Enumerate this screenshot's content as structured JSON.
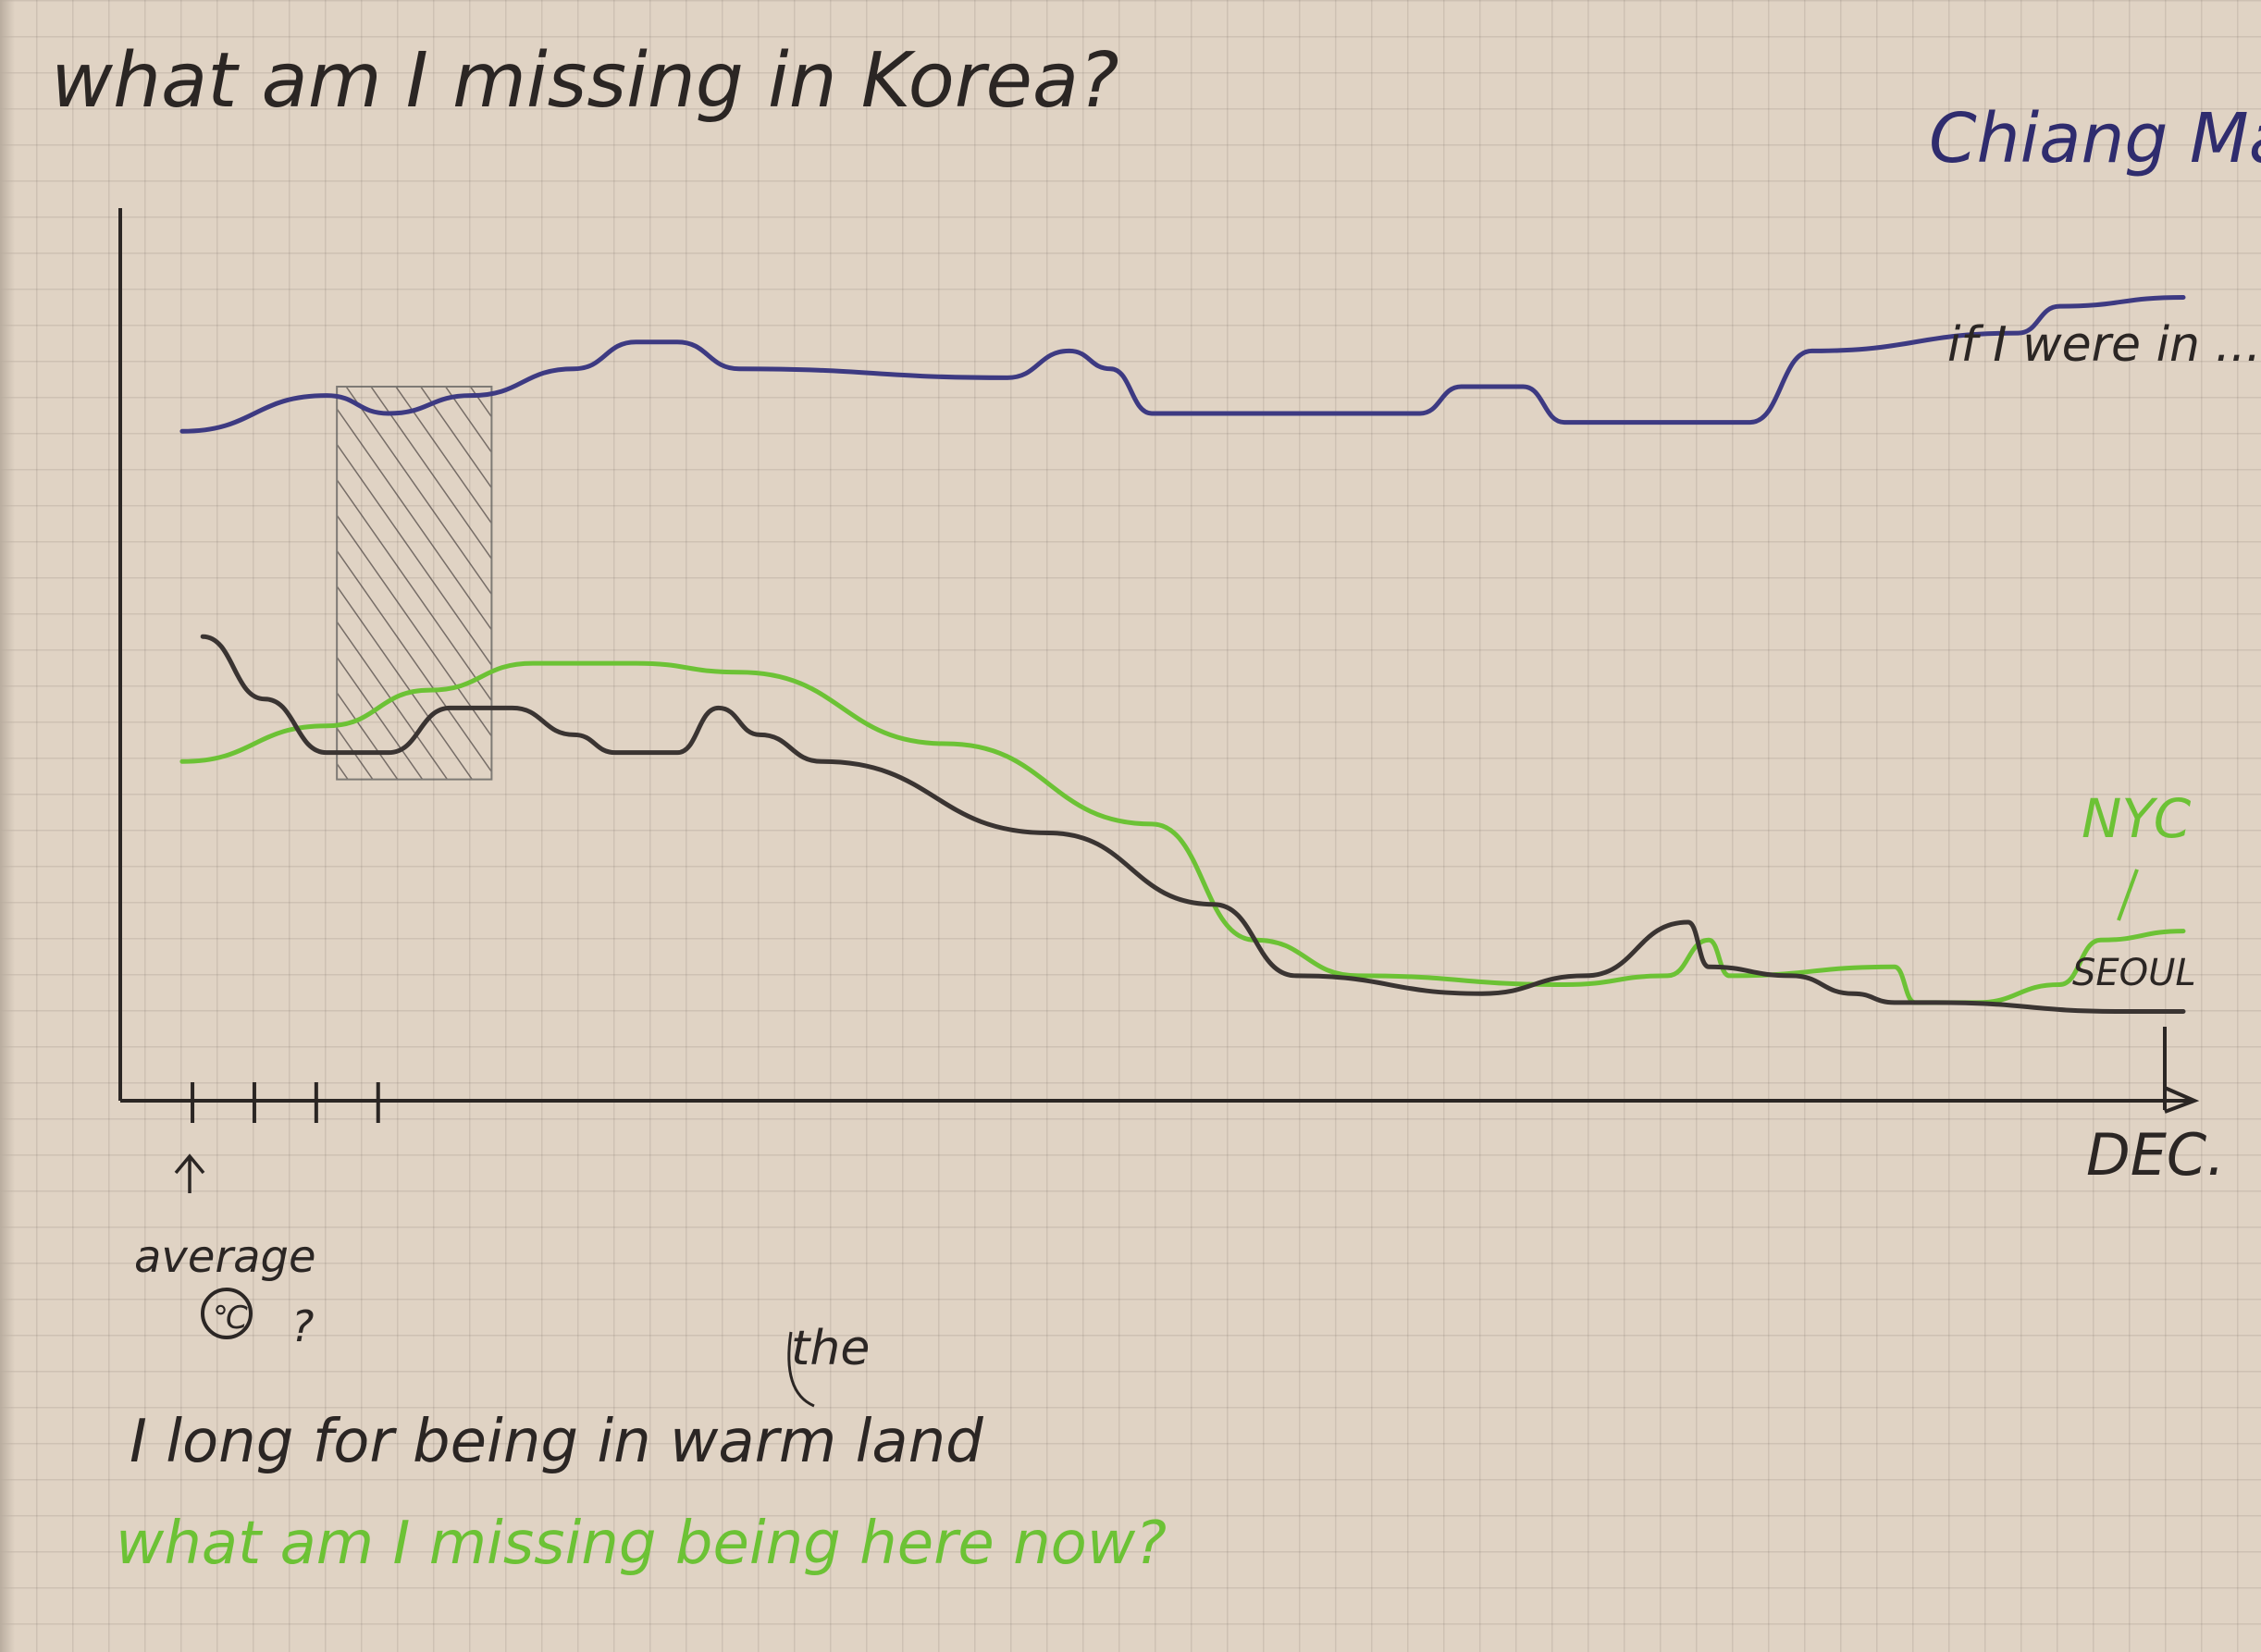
{
  "chart_data": {
    "type": "line",
    "title": "what am I missing in Korea?",
    "x_end_label": "DEC.",
    "y_marker_label": "average",
    "y_marker_symbol": "℃",
    "y_marker_question": "?",
    "ylim": [
      0,
      100
    ],
    "xlim": [
      0,
      100
    ],
    "shaded_range": [
      10.5,
      18
    ],
    "x_ticks": [
      3.5,
      6.5,
      9.5,
      12.5
    ],
    "series": [
      {
        "name": "Chiang Mai",
        "note": "if I were in ...",
        "color": "#3d3a82",
        "points": [
          [
            3,
            75
          ],
          [
            10,
            79
          ],
          [
            13,
            77
          ],
          [
            17,
            79
          ],
          [
            22,
            82
          ],
          [
            25,
            85
          ],
          [
            27,
            85
          ],
          [
            30,
            82
          ],
          [
            43,
            81
          ],
          [
            46,
            84
          ],
          [
            48,
            82
          ],
          [
            50,
            77
          ],
          [
            63,
            77
          ],
          [
            65,
            80
          ],
          [
            68,
            80
          ],
          [
            70,
            76
          ],
          [
            79,
            76
          ],
          [
            82,
            84
          ],
          [
            92,
            86
          ],
          [
            94,
            89
          ],
          [
            100,
            90
          ]
        ]
      },
      {
        "name": "NYC",
        "color": "#6cc235",
        "points": [
          [
            3,
            38
          ],
          [
            10,
            42
          ],
          [
            15,
            46
          ],
          [
            20,
            49
          ],
          [
            25,
            49
          ],
          [
            30,
            48
          ],
          [
            40,
            40
          ],
          [
            50,
            31
          ],
          [
            55,
            18
          ],
          [
            60,
            14
          ],
          [
            70,
            13
          ],
          [
            75,
            14
          ],
          [
            77,
            18
          ],
          [
            78,
            14
          ],
          [
            86,
            15
          ],
          [
            87,
            11
          ],
          [
            90,
            11
          ],
          [
            94,
            13
          ],
          [
            96,
            18
          ],
          [
            100,
            19
          ]
        ]
      },
      {
        "name": "SEOUL",
        "color": "#3a3432",
        "points": [
          [
            4,
            52
          ],
          [
            7,
            45
          ],
          [
            10,
            39
          ],
          [
            13,
            39
          ],
          [
            16,
            44
          ],
          [
            19,
            44
          ],
          [
            22,
            41
          ],
          [
            24,
            39
          ],
          [
            27,
            39
          ],
          [
            29,
            44
          ],
          [
            31,
            41
          ],
          [
            34,
            38
          ],
          [
            45,
            30
          ],
          [
            53,
            22
          ],
          [
            57,
            14
          ],
          [
            66,
            12
          ],
          [
            71,
            14
          ],
          [
            76,
            20
          ],
          [
            77,
            15
          ],
          [
            81,
            14
          ],
          [
            84,
            12
          ],
          [
            86,
            11
          ],
          [
            88,
            11
          ],
          [
            97,
            10
          ],
          [
            100,
            10
          ]
        ]
      }
    ],
    "annotations": [
      {
        "text": "the",
        "color": "#2b2624"
      },
      {
        "text": "I long for being in warm land",
        "color": "#2b2624"
      },
      {
        "text": "what am I missing being here now?",
        "color": "#6cc235"
      }
    ]
  }
}
